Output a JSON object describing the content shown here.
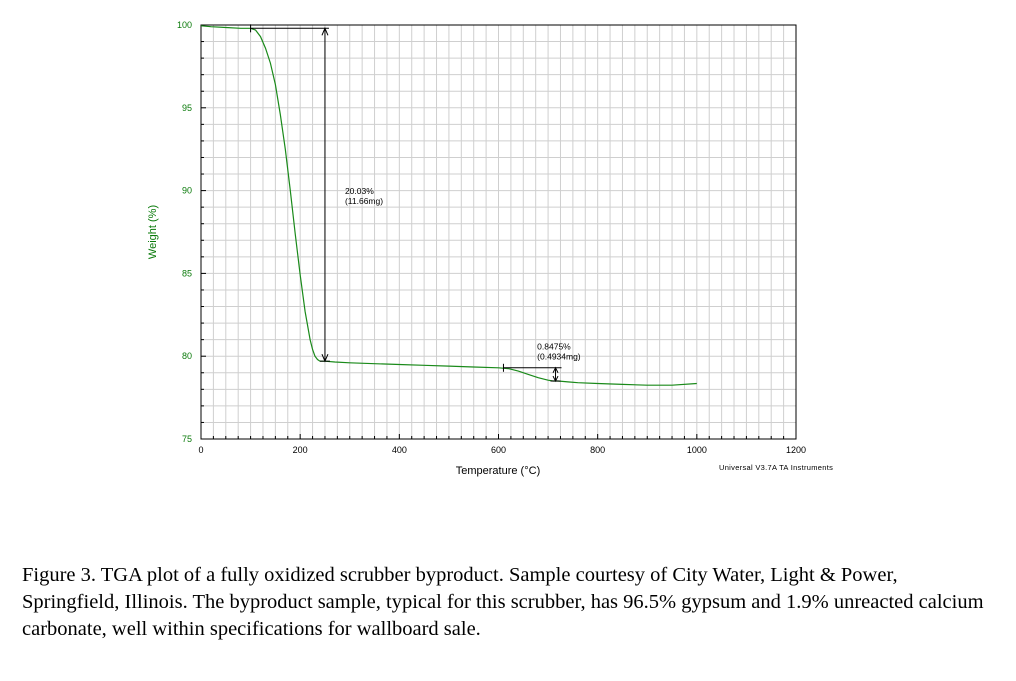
{
  "chart_data": {
    "type": "line",
    "title": "",
    "xlabel": "Temperature (°C)",
    "ylabel": "Weight (%)",
    "xlim": [
      0,
      1200
    ],
    "ylim": [
      75,
      100
    ],
    "x_ticks": [
      "0",
      "200",
      "400",
      "600",
      "800",
      "1000",
      "1200"
    ],
    "y_ticks": [
      "75",
      "80",
      "85",
      "90",
      "95",
      "100"
    ],
    "grid": true,
    "series": [
      {
        "color": "#1a8a1a",
        "x": [
          0,
          20,
          50,
          80,
          100,
          110,
          120,
          130,
          140,
          150,
          160,
          170,
          180,
          190,
          200,
          210,
          220,
          225,
          230,
          235,
          240,
          250,
          270,
          300,
          350,
          400,
          450,
          500,
          550,
          600,
          620,
          640,
          660,
          680,
          700,
          710,
          720,
          740,
          760,
          800,
          850,
          900,
          950,
          1000
        ],
        "y": [
          99.95,
          99.9,
          99.85,
          99.8,
          99.8,
          99.7,
          99.3,
          98.6,
          97.7,
          96.4,
          94.6,
          92.5,
          90.0,
          87.4,
          84.9,
          82.7,
          81.0,
          80.4,
          80.0,
          79.8,
          79.7,
          79.7,
          79.65,
          79.6,
          79.55,
          79.5,
          79.45,
          79.4,
          79.35,
          79.3,
          79.25,
          79.1,
          78.9,
          78.7,
          78.55,
          78.5,
          78.5,
          78.45,
          78.4,
          78.35,
          78.3,
          78.25,
          78.25,
          78.35
        ]
      }
    ],
    "annotations": [
      {
        "text_line1": "20.03%",
        "text_line2": "(11.66mg)",
        "x": 250,
        "y_top": 99.8,
        "y_bottom": 79.7
      },
      {
        "text_line1": "0.8475%",
        "text_line2": "(0.4934mg)",
        "x": 715,
        "y_top": 79.3,
        "y_bottom": 78.5
      }
    ],
    "credit": "Universal V3.7A TA Instruments"
  },
  "caption": "Figure 3.  TGA plot of a fully oxidized scrubber byproduct.  Sample courtesy of City Water, Light & Power, Springfield, Illinois.  The byproduct sample, typical for this scrubber, has 96.5% gypsum and 1.9% unreacted calcium carbonate, well within specifications for wallboard sale."
}
